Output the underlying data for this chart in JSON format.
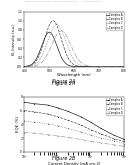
{
  "header_text": "Patent Application Publication    Nov. 10, 2016   Sheet 2 of 8         US 2016/0344XXXX A1",
  "fig2a": {
    "title": "Figure 2A",
    "xlabel": "Wavelength (nm)",
    "ylabel": "EL Intensity (a.u.)",
    "xlim": [
      400,
      800
    ],
    "ylim": [
      0,
      1.2
    ],
    "yticks": [
      0.0,
      0.2,
      0.4,
      0.6,
      0.8,
      1.0,
      1.2
    ],
    "xticks": [
      400,
      500,
      600,
      700,
      800
    ],
    "curves": [
      {
        "peak": 500,
        "sigma": 30,
        "amp": 0.75,
        "style": "solid",
        "color": "#222222",
        "label": "Complex A"
      },
      {
        "peak": 515,
        "sigma": 33,
        "amp": 1.0,
        "style": "dashed",
        "color": "#444444",
        "label": "Complex B"
      },
      {
        "peak": 530,
        "sigma": 36,
        "amp": 0.92,
        "style": "dotted",
        "color": "#666666",
        "label": "Complex C"
      },
      {
        "peak": 548,
        "sigma": 38,
        "amp": 0.78,
        "style": "dashdot",
        "color": "#999999",
        "label": "Complex D"
      }
    ]
  },
  "fig2b": {
    "title": "Figure 2B",
    "xlabel": "Current Density (mA cm-2)",
    "ylabel": "EQE (%)",
    "xlim_log": [
      1,
      1000
    ],
    "ylim": [
      0,
      8
    ],
    "yticks": [
      0,
      2,
      4,
      6,
      8
    ],
    "curves": [
      {
        "x": [
          1,
          2,
          5,
          10,
          20,
          50,
          100,
          200,
          500,
          1000
        ],
        "y": [
          7.2,
          7.0,
          6.8,
          6.4,
          5.9,
          5.1,
          4.3,
          3.4,
          2.4,
          1.8
        ],
        "style": "solid",
        "color": "#222222",
        "label": "Complex A"
      },
      {
        "x": [
          1,
          2,
          5,
          10,
          20,
          50,
          100,
          200,
          500,
          1000
        ],
        "y": [
          6.0,
          5.8,
          5.5,
          5.1,
          4.6,
          3.9,
          3.2,
          2.6,
          1.9,
          1.5
        ],
        "style": "dashed",
        "color": "#444444",
        "label": "Complex B"
      },
      {
        "x": [
          1,
          2,
          5,
          10,
          20,
          50,
          100,
          200,
          500,
          1000
        ],
        "y": [
          4.5,
          4.3,
          4.1,
          3.8,
          3.4,
          2.9,
          2.4,
          2.0,
          1.6,
          1.2
        ],
        "style": "dotted",
        "color": "#666666",
        "label": "Complex C"
      },
      {
        "x": [
          1,
          2,
          5,
          10,
          20,
          50,
          100,
          200,
          500,
          1000
        ],
        "y": [
          2.8,
          2.7,
          2.5,
          2.3,
          2.1,
          1.8,
          1.5,
          1.3,
          1.0,
          0.8
        ],
        "style": "dashdot",
        "color": "#999999",
        "label": "Complex D"
      }
    ]
  },
  "background_color": "#ffffff",
  "fig_width": 1.28,
  "fig_height": 1.65
}
